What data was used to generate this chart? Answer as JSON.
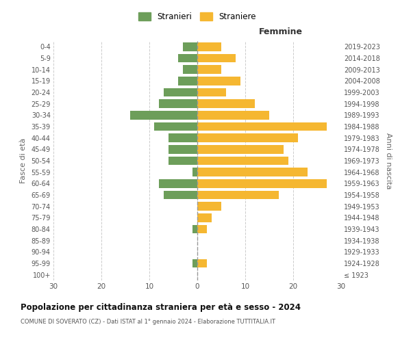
{
  "age_groups": [
    "100+",
    "95-99",
    "90-94",
    "85-89",
    "80-84",
    "75-79",
    "70-74",
    "65-69",
    "60-64",
    "55-59",
    "50-54",
    "45-49",
    "40-44",
    "35-39",
    "30-34",
    "25-29",
    "20-24",
    "15-19",
    "10-14",
    "5-9",
    "0-4"
  ],
  "birth_years": [
    "≤ 1923",
    "1924-1928",
    "1929-1933",
    "1934-1938",
    "1939-1943",
    "1944-1948",
    "1949-1953",
    "1954-1958",
    "1959-1963",
    "1964-1968",
    "1969-1973",
    "1974-1978",
    "1979-1983",
    "1984-1988",
    "1989-1993",
    "1994-1998",
    "1999-2003",
    "2004-2008",
    "2009-2013",
    "2014-2018",
    "2019-2023"
  ],
  "males": [
    0,
    1,
    0,
    0,
    1,
    0,
    0,
    7,
    8,
    1,
    6,
    6,
    6,
    9,
    14,
    8,
    7,
    4,
    3,
    4,
    3
  ],
  "females": [
    0,
    2,
    0,
    0,
    2,
    3,
    5,
    17,
    27,
    23,
    19,
    18,
    21,
    27,
    15,
    12,
    6,
    9,
    5,
    8,
    5
  ],
  "male_color": "#6d9e5a",
  "female_color": "#f5b731",
  "background_color": "#ffffff",
  "grid_color": "#cccccc",
  "title": "Popolazione per cittadinanza straniera per età e sesso - 2024",
  "subtitle": "COMUNE DI SOVERATO (CZ) - Dati ISTAT al 1° gennaio 2024 - Elaborazione TUTTITALIA.IT",
  "right_label": "Femmine",
  "left_axis_label": "Fasce di età",
  "right_axis_label": "Anni di nascita",
  "legend_stranieri": "Stranieri",
  "legend_straniere": "Straniere",
  "xlim": 30
}
